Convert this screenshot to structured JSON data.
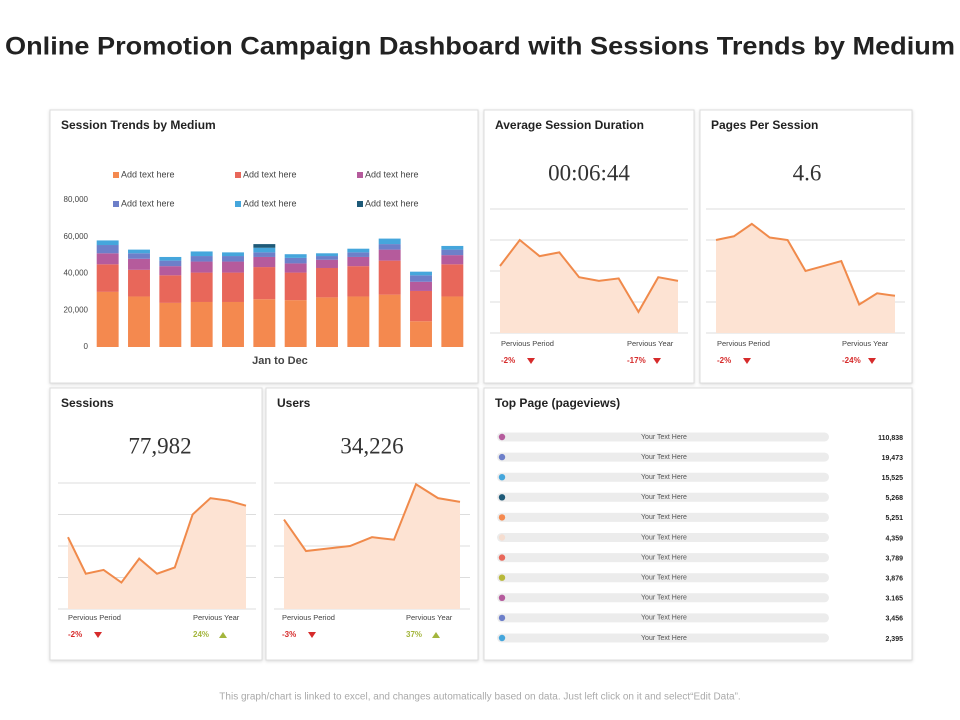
{
  "title": "Online Promotion Campaign Dashboard with Sessions Trends by Medium",
  "footer": "This graph/chart is linked to excel, and changes automatically based on data. Just left click on it and select“Edit Data”.",
  "trend_colors": {
    "down": "#d62b2b",
    "up": "#a3b53c"
  },
  "chart_data": [
    {
      "type": "stacked-bar",
      "title": "Session Trends by Medium",
      "x_label": "Jan to Dec",
      "categories": [
        null,
        null,
        null,
        null,
        null,
        null,
        null,
        null,
        null,
        null,
        null,
        null
      ],
      "ylim": [
        0,
        80000
      ],
      "yticks": [
        0,
        {
          "value": 20000,
          "label": "20,000"
        },
        {
          "value": 40000,
          "label": "40,000"
        },
        {
          "value": 60000,
          "label": "60,000"
        },
        {
          "value": 80000,
          "label": "80,000"
        }
      ],
      "grid": false,
      "series": [
        {
          "name": "Add text here",
          "color": "#f4894f",
          "values": [
            30000,
            27500,
            24000,
            24500,
            24500,
            26000,
            25500,
            27000,
            27500,
            28500,
            14000,
            27500
          ]
        },
        {
          "name": "Add text here",
          "color": "#e8675a",
          "values": [
            15000,
            14500,
            15000,
            16000,
            16000,
            17500,
            15000,
            16000,
            16500,
            18500,
            16500,
            17500
          ]
        },
        {
          "name": "Add text here",
          "color": "#b55b9c",
          "values": [
            6000,
            6000,
            5000,
            6000,
            6000,
            5500,
            5000,
            4500,
            5000,
            6000,
            5000,
            5000
          ]
        },
        {
          "name": "Add text here",
          "color": "#6d7fc9",
          "values": [
            4500,
            3000,
            3000,
            3000,
            3000,
            2500,
            3000,
            2000,
            2500,
            3000,
            3500,
            3000
          ]
        },
        {
          "name": "Add text here",
          "color": "#45a6dc",
          "values": [
            2500,
            2000,
            2000,
            2500,
            2000,
            2500,
            2000,
            1500,
            2000,
            3000,
            2000,
            2000
          ]
        },
        {
          "name": "Add text here",
          "color": "#1e5a78",
          "values": [
            0,
            0,
            0,
            0,
            0,
            2000,
            0,
            0,
            0,
            0,
            0,
            0
          ]
        }
      ]
    },
    {
      "type": "area",
      "title": "Average Session Duration",
      "kpi": "00:06:44",
      "categories": [
        null,
        null,
        null,
        null,
        null,
        null,
        null,
        null,
        null,
        null
      ],
      "values": [
        54,
        75,
        62,
        65,
        45,
        42,
        44,
        17,
        45,
        42
      ],
      "ylim": [
        0,
        100
      ],
      "yticks": [
        0,
        25,
        50,
        75,
        100
      ],
      "grid": true,
      "color": "#f08a4b",
      "comparisons": [
        {
          "label": "Pervious Period",
          "value": "-2%",
          "trend": "down"
        },
        {
          "label": "Pervious Year",
          "value": "-17%",
          "trend": "down"
        }
      ]
    },
    {
      "type": "area",
      "title": "Pages Per Session",
      "kpi": "4.6",
      "categories": [
        null,
        null,
        null,
        null,
        null,
        null,
        null,
        null,
        null,
        null,
        null
      ],
      "values": [
        75,
        78,
        88,
        77,
        75,
        50,
        54,
        58,
        23,
        32,
        30
      ],
      "ylim": [
        0,
        100
      ],
      "yticks": [
        0,
        25,
        50,
        75,
        100
      ],
      "grid": true,
      "color": "#f08a4b",
      "comparisons": [
        {
          "label": "Pervious Period",
          "value": "-2%",
          "trend": "down"
        },
        {
          "label": "Pervious Year",
          "value": "-24%",
          "trend": "down"
        }
      ]
    },
    {
      "type": "area",
      "title": "Sessions",
      "kpi": "77,982",
      "categories": [
        null,
        null,
        null,
        null,
        null,
        null,
        null,
        null,
        null,
        null,
        null
      ],
      "values": [
        57,
        28,
        31,
        21,
        40,
        28,
        33,
        75,
        88,
        86,
        82
      ],
      "ylim": [
        0,
        100
      ],
      "yticks": [
        0,
        25,
        50,
        75,
        100
      ],
      "grid": true,
      "color": "#f08a4b",
      "comparisons": [
        {
          "label": "Pervious Period",
          "value": "-2%",
          "trend": "down"
        },
        {
          "label": "Pervious Year",
          "value": "24%",
          "trend": "up"
        }
      ]
    },
    {
      "type": "area",
      "title": "Users",
      "kpi": "34,226",
      "categories": [
        null,
        null,
        null,
        null,
        null,
        null,
        null,
        null,
        null
      ],
      "values": [
        71,
        46,
        48,
        50,
        57,
        55,
        99,
        88,
        85
      ],
      "ylim": [
        0,
        100
      ],
      "yticks": [
        0,
        25,
        50,
        75,
        100
      ],
      "grid": true,
      "color": "#f08a4b",
      "comparisons": [
        {
          "label": "Pervious Period",
          "value": "-3%",
          "trend": "down"
        },
        {
          "label": "Pervious Year",
          "value": "37%",
          "trend": "up"
        }
      ]
    }
  ],
  "top_page": {
    "title": "Top Page (pageviews)",
    "rows": [
      {
        "label": "Your Text Here",
        "value": "110,838",
        "color": "#b55b9c"
      },
      {
        "label": "Your Text Here",
        "value": "19,473",
        "color": "#6d7fc9"
      },
      {
        "label": "Your Text Here",
        "value": "15,525",
        "color": "#45a6dc"
      },
      {
        "label": "Your Text Here",
        "value": "5,268",
        "color": "#1e5a78"
      },
      {
        "label": "Your Text Here",
        "value": "5,251",
        "color": "#f4894f"
      },
      {
        "label": "Your Text Here",
        "value": "4,359",
        "color": "#f5ddd0"
      },
      {
        "label": "Your Text Here",
        "value": "3,789",
        "color": "#e8675a"
      },
      {
        "label": "Your Text Here",
        "value": "3,876",
        "color": "#b8b83a"
      },
      {
        "label": "Your Text Here",
        "value": "3.165",
        "color": "#b55b9c"
      },
      {
        "label": "Your Text Here",
        "value": "3,456",
        "color": "#6d7fc9"
      },
      {
        "label": "Your Text Here",
        "value": "2,395",
        "color": "#45a6dc"
      }
    ]
  }
}
